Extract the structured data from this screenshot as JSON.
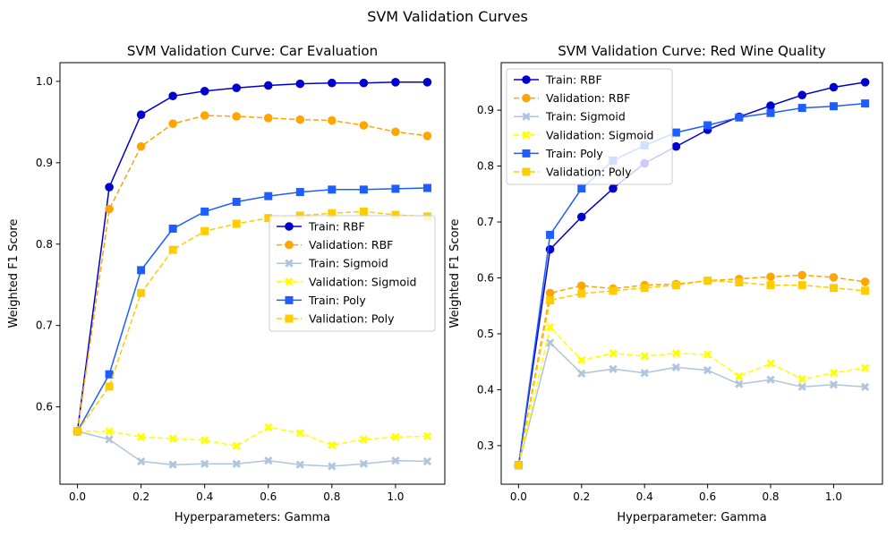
{
  "figure": {
    "title": "SVM Validation Curves"
  },
  "chart_data": [
    {
      "type": "line",
      "title": "SVM Validation Curve: Car Evaluation",
      "xlabel": "Hyperparameters: Gamma",
      "ylabel": "Weighted F1 Score",
      "xlim": [
        -0.055,
        1.155
      ],
      "ylim": [
        0.505,
        1.023
      ],
      "xticks": [
        0.0,
        0.2,
        0.4,
        0.6,
        0.8,
        1.0
      ],
      "xtick_labels": [
        "0.0",
        "0.2",
        "0.4",
        "0.6",
        "0.8",
        "1.0"
      ],
      "yticks": [
        0.6,
        0.7,
        0.8,
        0.9,
        1.0
      ],
      "ytick_labels": [
        "0.6",
        "0.7",
        "0.8",
        "0.9",
        "1.0"
      ],
      "grid": false,
      "legend_position": "center-right",
      "x": [
        0.0,
        0.1,
        0.2,
        0.3,
        0.4,
        0.5,
        0.6,
        0.7,
        0.8,
        0.9,
        1.0,
        1.1
      ],
      "series": [
        {
          "name": "Train: RBF",
          "color": "#0000cd",
          "linestyle": "solid",
          "marker": "circle",
          "values": [
            0.57,
            0.87,
            0.959,
            0.982,
            0.988,
            0.992,
            0.995,
            0.997,
            0.998,
            0.998,
            0.999,
            0.999
          ]
        },
        {
          "name": "Validation: RBF",
          "color": "#ffa500",
          "linestyle": "dashed",
          "marker": "circle",
          "values": [
            0.57,
            0.843,
            0.92,
            0.948,
            0.958,
            0.957,
            0.955,
            0.953,
            0.952,
            0.946,
            0.938,
            0.933
          ]
        },
        {
          "name": "Train: Sigmoid",
          "color": "#b0c4de",
          "linestyle": "solid",
          "marker": "x",
          "values": [
            0.57,
            0.56,
            0.533,
            0.529,
            0.53,
            0.53,
            0.534,
            0.529,
            0.527,
            0.53,
            0.534,
            0.533
          ]
        },
        {
          "name": "Validation: Sigmoid",
          "color": "#ffff00",
          "linestyle": "dashed",
          "marker": "x",
          "values": [
            0.57,
            0.57,
            0.563,
            0.561,
            0.559,
            0.552,
            0.575,
            0.568,
            0.553,
            0.56,
            0.563,
            0.564
          ]
        },
        {
          "name": "Train: Poly",
          "color": "#1e5eff",
          "linestyle": "solid",
          "marker": "square",
          "values": [
            0.57,
            0.64,
            0.768,
            0.819,
            0.84,
            0.852,
            0.859,
            0.864,
            0.867,
            0.867,
            0.868,
            0.869
          ]
        },
        {
          "name": "Validation: Poly",
          "color": "#ffcc00",
          "linestyle": "dashed",
          "marker": "square",
          "values": [
            0.57,
            0.625,
            0.74,
            0.793,
            0.816,
            0.825,
            0.832,
            0.835,
            0.838,
            0.84,
            0.836,
            0.834
          ]
        }
      ]
    },
    {
      "type": "line",
      "title": "SVM Validation Curve: Red Wine Quality",
      "xlabel": "Hyperparameter: Gamma",
      "ylabel": "Weighted F1 Score",
      "xlim": [
        -0.055,
        1.155
      ],
      "ylim": [
        0.231,
        0.985
      ],
      "xticks": [
        0.0,
        0.2,
        0.4,
        0.6,
        0.8,
        1.0
      ],
      "xtick_labels": [
        "0.0",
        "0.2",
        "0.4",
        "0.6",
        "0.8",
        "1.0"
      ],
      "yticks": [
        0.3,
        0.4,
        0.5,
        0.6,
        0.7,
        0.8,
        0.9
      ],
      "ytick_labels": [
        "0.3",
        "0.4",
        "0.5",
        "0.6",
        "0.7",
        "0.8",
        "0.9"
      ],
      "grid": false,
      "legend_position": "upper-left",
      "x": [
        0.0,
        0.1,
        0.2,
        0.3,
        0.4,
        0.5,
        0.6,
        0.7,
        0.8,
        0.9,
        1.0,
        1.1
      ],
      "series": [
        {
          "name": "Train: RBF",
          "color": "#0000cd",
          "linestyle": "solid",
          "marker": "circle",
          "values": [
            0.265,
            0.651,
            0.709,
            0.76,
            0.805,
            0.835,
            0.865,
            0.888,
            0.908,
            0.927,
            0.941,
            0.95
          ]
        },
        {
          "name": "Validation: RBF",
          "color": "#ffa500",
          "linestyle": "dashed",
          "marker": "circle",
          "values": [
            0.265,
            0.573,
            0.586,
            0.581,
            0.587,
            0.589,
            0.595,
            0.598,
            0.602,
            0.605,
            0.601,
            0.593
          ]
        },
        {
          "name": "Train: Sigmoid",
          "color": "#b0c4de",
          "linestyle": "solid",
          "marker": "x",
          "values": [
            0.265,
            0.484,
            0.429,
            0.437,
            0.43,
            0.44,
            0.435,
            0.41,
            0.418,
            0.405,
            0.409,
            0.405
          ]
        },
        {
          "name": "Validation: Sigmoid",
          "color": "#ffff00",
          "linestyle": "dashed",
          "marker": "x",
          "values": [
            0.265,
            0.512,
            0.453,
            0.465,
            0.46,
            0.465,
            0.463,
            0.424,
            0.447,
            0.419,
            0.43,
            0.439
          ]
        },
        {
          "name": "Train: Poly",
          "color": "#1e5eff",
          "linestyle": "solid",
          "marker": "square",
          "values": [
            0.265,
            0.677,
            0.76,
            0.81,
            0.837,
            0.86,
            0.873,
            0.887,
            0.895,
            0.904,
            0.907,
            0.912
          ]
        },
        {
          "name": "Validation: Poly",
          "color": "#ffcc00",
          "linestyle": "dashed",
          "marker": "square",
          "values": [
            0.265,
            0.56,
            0.572,
            0.577,
            0.582,
            0.587,
            0.595,
            0.592,
            0.587,
            0.587,
            0.582,
            0.577
          ]
        }
      ]
    }
  ]
}
